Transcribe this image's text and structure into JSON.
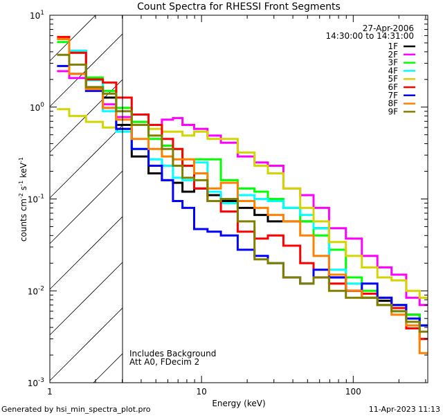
{
  "chart_data": {
    "type": "line",
    "title": "Count Spectra for RHESSI Front Segments",
    "xlabel": "Energy (keV)",
    "ylabel": "counts cm^-2 s^-1 keV^-1",
    "ylabel_parts": {
      "a": "counts cm",
      "b": "-2",
      "c": " s",
      "d": "-1",
      "e": " keV",
      "f": "-1"
    },
    "xscale": "log",
    "yscale": "log",
    "xlim": [
      1,
      310
    ],
    "ylim": [
      0.001,
      10
    ],
    "x_ticks": [
      {
        "value": 1,
        "label": "1"
      },
      {
        "value": 10,
        "label": "10"
      },
      {
        "value": 100,
        "label": "100"
      }
    ],
    "y_ticks": [
      {
        "value": 0.001,
        "base": "10",
        "exp": "-3"
      },
      {
        "value": 0.01,
        "base": "10",
        "exp": "-2"
      },
      {
        "value": 0.1,
        "base": "10",
        "exp": "-1"
      },
      {
        "value": 1,
        "base": "10",
        "exp": "0"
      },
      {
        "value": 10,
        "base": "10",
        "exp": "1"
      }
    ],
    "date": "27-Apr-2006",
    "time_range": "14:30:00 to 14:31:00",
    "hatched_region_keV": [
      1,
      3
    ],
    "annotations": [
      "Includes Background",
      "Att A0, FDecim 2"
    ],
    "legend_placement": "top-right",
    "energies": [
      1.2,
      1.5,
      2,
      2.5,
      3,
      4,
      5,
      6,
      7,
      8,
      10,
      12,
      15,
      20,
      25,
      30,
      40,
      50,
      60,
      80,
      100,
      130,
      160,
      200,
      250,
      300
    ],
    "series": [
      {
        "name": "1F",
        "color": "#000000",
        "values": [
          5.5,
          4.1,
          1.96,
          1.27,
          0.64,
          0.29,
          0.19,
          0.16,
          0.15,
          0.12,
          0.13,
          0.11,
          0.095,
          0.08,
          0.067,
          0.057,
          0.057,
          0.057,
          0.048,
          0.014,
          0.01,
          0.0084,
          0.0078,
          0.007,
          0.0055,
          0.0042
        ]
      },
      {
        "name": "2F",
        "color": "#ff00ff",
        "values": [
          2.46,
          2.07,
          1.65,
          1.07,
          0.78,
          0.69,
          0.64,
          0.73,
          0.76,
          0.64,
          0.58,
          0.49,
          0.41,
          0.29,
          0.25,
          0.23,
          0.13,
          0.11,
          0.08,
          0.048,
          0.037,
          0.024,
          0.018,
          0.015,
          0.0084,
          0.007
        ]
      },
      {
        "name": "3F",
        "color": "#00ff00",
        "values": [
          5.1,
          3.9,
          2.1,
          1.5,
          0.98,
          0.69,
          0.45,
          0.38,
          0.35,
          0.23,
          0.27,
          0.27,
          0.16,
          0.13,
          0.12,
          0.1,
          0.08,
          0.057,
          0.04,
          0.028,
          0.014,
          0.01,
          0.0084,
          0.007,
          0.0055,
          0.0042
        ]
      },
      {
        "name": "4F",
        "color": "#00ffff",
        "values": [
          5.5,
          4.1,
          1.96,
          0.9,
          0.54,
          0.35,
          0.27,
          0.23,
          0.17,
          0.16,
          0.25,
          0.12,
          0.09,
          0.11,
          0.1,
          0.095,
          0.08,
          0.067,
          0.048,
          0.017,
          0.012,
          0.0084,
          0.007,
          0.006,
          0.0042,
          0.003
        ]
      },
      {
        "name": "5F",
        "color": "#d4d400",
        "values": [
          0.95,
          0.8,
          0.69,
          0.6,
          0.58,
          0.64,
          0.58,
          0.54,
          0.54,
          0.49,
          0.54,
          0.45,
          0.45,
          0.32,
          0.23,
          0.19,
          0.13,
          0.08,
          0.057,
          0.034,
          0.024,
          0.018,
          0.014,
          0.013,
          0.01,
          0.0084
        ]
      },
      {
        "name": "6F",
        "color": "#ff0000",
        "values": [
          5.8,
          3.9,
          2.0,
          1.85,
          1.27,
          0.83,
          0.64,
          0.45,
          0.35,
          0.23,
          0.13,
          0.095,
          0.073,
          0.044,
          0.037,
          0.04,
          0.031,
          0.02,
          0.014,
          0.012,
          0.01,
          0.0093,
          0.0084,
          0.0065,
          0.0039,
          0.003
        ]
      },
      {
        "name": "7F",
        "color": "#0000ff",
        "values": [
          2.8,
          2.3,
          1.5,
          0.98,
          0.58,
          0.35,
          0.23,
          0.16,
          0.095,
          0.08,
          0.047,
          0.044,
          0.04,
          0.028,
          0.024,
          0.02,
          0.014,
          0.012,
          0.017,
          0.014,
          0.01,
          0.012,
          0.0084,
          0.007,
          0.005,
          0.0042
        ]
      },
      {
        "name": "8F",
        "color": "#ff8000",
        "values": [
          5.5,
          2.3,
          1.57,
          0.98,
          0.73,
          0.45,
          0.35,
          0.29,
          0.27,
          0.27,
          0.19,
          0.13,
          0.15,
          0.095,
          0.08,
          0.067,
          0.057,
          0.04,
          0.024,
          0.015,
          0.01,
          0.0084,
          0.007,
          0.0055,
          0.0042,
          0.0021
        ]
      },
      {
        "name": "9F",
        "color": "#808000",
        "values": [
          3.7,
          2.9,
          1.65,
          1.4,
          0.9,
          0.64,
          0.49,
          0.35,
          0.23,
          0.17,
          0.16,
          0.095,
          0.1,
          0.057,
          0.022,
          0.02,
          0.014,
          0.012,
          0.014,
          0.01,
          0.0084,
          0.0084,
          0.007,
          0.006,
          0.0046,
          0.0036
        ]
      }
    ]
  },
  "footer": {
    "generated_by": "Generated by hsi_min_spectra_plot.pro",
    "timestamp": "11-Apr-2023 11:13"
  }
}
